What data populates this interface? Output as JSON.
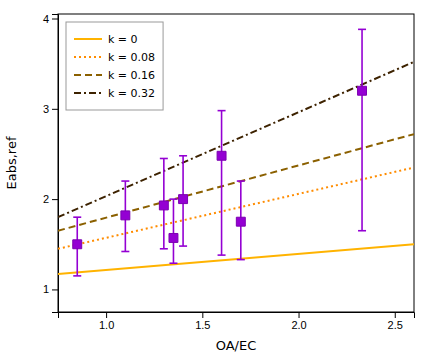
{
  "chart_data": {
    "type": "line",
    "xlabel": "OA/EC",
    "ylabel": "Eabs,ref",
    "xlim": [
      0.75,
      2.6
    ],
    "ylim": [
      0.75,
      4.05
    ],
    "xticks": [
      {
        "value": 1.0,
        "label": "1.0"
      },
      1.5,
      {
        "value": 2.0,
        "label": "2.0"
      },
      2.5
    ],
    "yticks": [
      1,
      2,
      3,
      4
    ],
    "grid": false,
    "legend": "upper left",
    "series": [
      {
        "name": "k = 0",
        "type": "line",
        "color": "#FFB300",
        "line_style": "solid",
        "x": [
          0.75,
          2.6
        ],
        "values": [
          1.17,
          1.5
        ]
      },
      {
        "name": "k = 0.08",
        "type": "line",
        "color": "#FF8C00",
        "line_style": "dotted",
        "x": [
          0.75,
          2.6
        ],
        "values": [
          1.45,
          2.35
        ]
      },
      {
        "name": "k = 0.16",
        "type": "line",
        "color": "#8B6000",
        "line_style": "dashed",
        "x": [
          0.75,
          2.6
        ],
        "values": [
          1.65,
          2.72
        ]
      },
      {
        "name": "k = 0.32",
        "type": "line",
        "color": "#3D2200",
        "line_style": "dashdot",
        "x": [
          0.75,
          2.6
        ],
        "values": [
          1.8,
          3.52
        ]
      },
      {
        "type": "scatter",
        "color": "#9400D3",
        "marker": "square",
        "x": [
          0.85,
          1.1,
          1.3,
          1.35,
          1.4,
          1.6,
          1.7,
          2.33
        ],
        "values": [
          1.5,
          1.82,
          1.93,
          1.57,
          2.0,
          2.48,
          1.75,
          3.2
        ],
        "error_low": [
          0.35,
          0.4,
          0.48,
          0.28,
          0.52,
          1.1,
          0.42,
          1.55
        ],
        "error_high": [
          0.3,
          0.38,
          0.52,
          0.43,
          0.48,
          0.5,
          0.45,
          0.68
        ]
      }
    ]
  }
}
